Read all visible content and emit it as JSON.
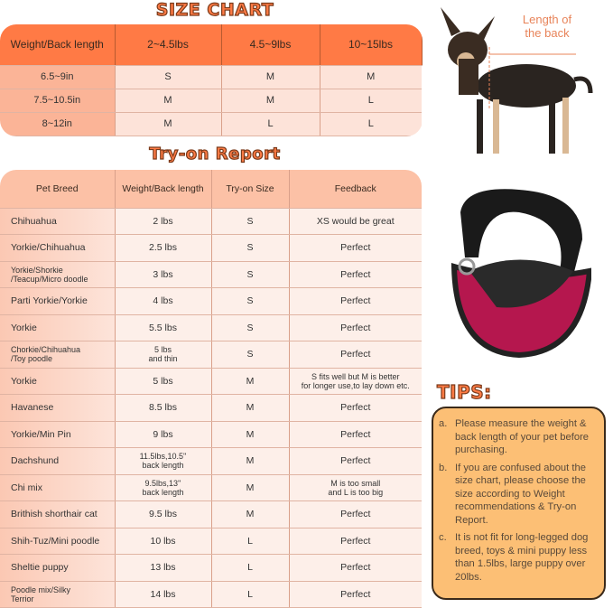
{
  "size_chart": {
    "title": "SIZE CHART",
    "headers": [
      "Weight/Back length",
      "2~4.5lbs",
      "4.5~9lbs",
      "10~15lbs"
    ],
    "rows": [
      [
        "6.5~9in",
        "S",
        "M",
        "M"
      ],
      [
        "7.5~10.5in",
        "M",
        "M",
        "L"
      ],
      [
        "8~12in",
        "M",
        "L",
        "L"
      ]
    ]
  },
  "tryon": {
    "title": "Try-on Report",
    "headers": [
      "Pet Breed",
      "Weight/Back length",
      "Try-on Size",
      "Feedback"
    ],
    "rows": [
      [
        "Chihuahua",
        "2 lbs",
        "S",
        "XS would be great"
      ],
      [
        "Yorkie/Chihuahua",
        "2.5 lbs",
        "S",
        "Perfect"
      ],
      [
        "Yorkie/Shorkie\n/Teacup/Micro doodle",
        "3 lbs",
        "S",
        "Perfect"
      ],
      [
        "Parti Yorkie/Yorkie",
        "4 lbs",
        "S",
        "Perfect"
      ],
      [
        "Yorkie",
        "5.5 lbs",
        "S",
        "Perfect"
      ],
      [
        "Chorkie/Chihuahua\n/Toy poodle",
        "5 lbs\nand thin",
        "S",
        "Perfect"
      ],
      [
        "Yorkie",
        "5 lbs",
        "M",
        "S fits well but M is better\nfor longer use,to lay down etc."
      ],
      [
        "Havanese",
        "8.5 lbs",
        "M",
        "Perfect"
      ],
      [
        "Yorkie/Min Pin",
        "9 lbs",
        "M",
        "Perfect"
      ],
      [
        "Dachshund",
        "11.5lbs,10.5''\nback length",
        "M",
        "Perfect"
      ],
      [
        "Chi mix",
        "9.5lbs,13''\nback length",
        "M",
        "M is too small\nand L is too big"
      ],
      [
        "Brithish shorthair cat",
        "9.5 lbs",
        "M",
        "Perfect"
      ],
      [
        "Shih-Tuz/Mini poodle",
        "10 lbs",
        "L",
        "Perfect"
      ],
      [
        "Sheltie puppy",
        "13 lbs",
        "L",
        "Perfect"
      ],
      [
        "Poodle mix/Silky\nTerrior",
        "14 lbs",
        "L",
        "Perfect"
      ]
    ]
  },
  "dog_image": {
    "label": "Length of\nthe back"
  },
  "tips": {
    "title": "TIPS:",
    "items": [
      {
        "marker": "a.",
        "text": "Please measure the weight & back length of your pet before purchasing."
      },
      {
        "marker": "b.",
        "text": "If you are confused about the size chart, please choose the size according to Weight recommendations & Try-on Report."
      },
      {
        "marker": "c.",
        "text": "It is not fit for long-legged dog breed, toys & mini puppy less than 1.5lbs, large puppy over 20lbs."
      }
    ]
  },
  "colors": {
    "header": "#ff7a45",
    "tips_bg": "#fcbf75",
    "bag_pink": "#c2185b"
  }
}
